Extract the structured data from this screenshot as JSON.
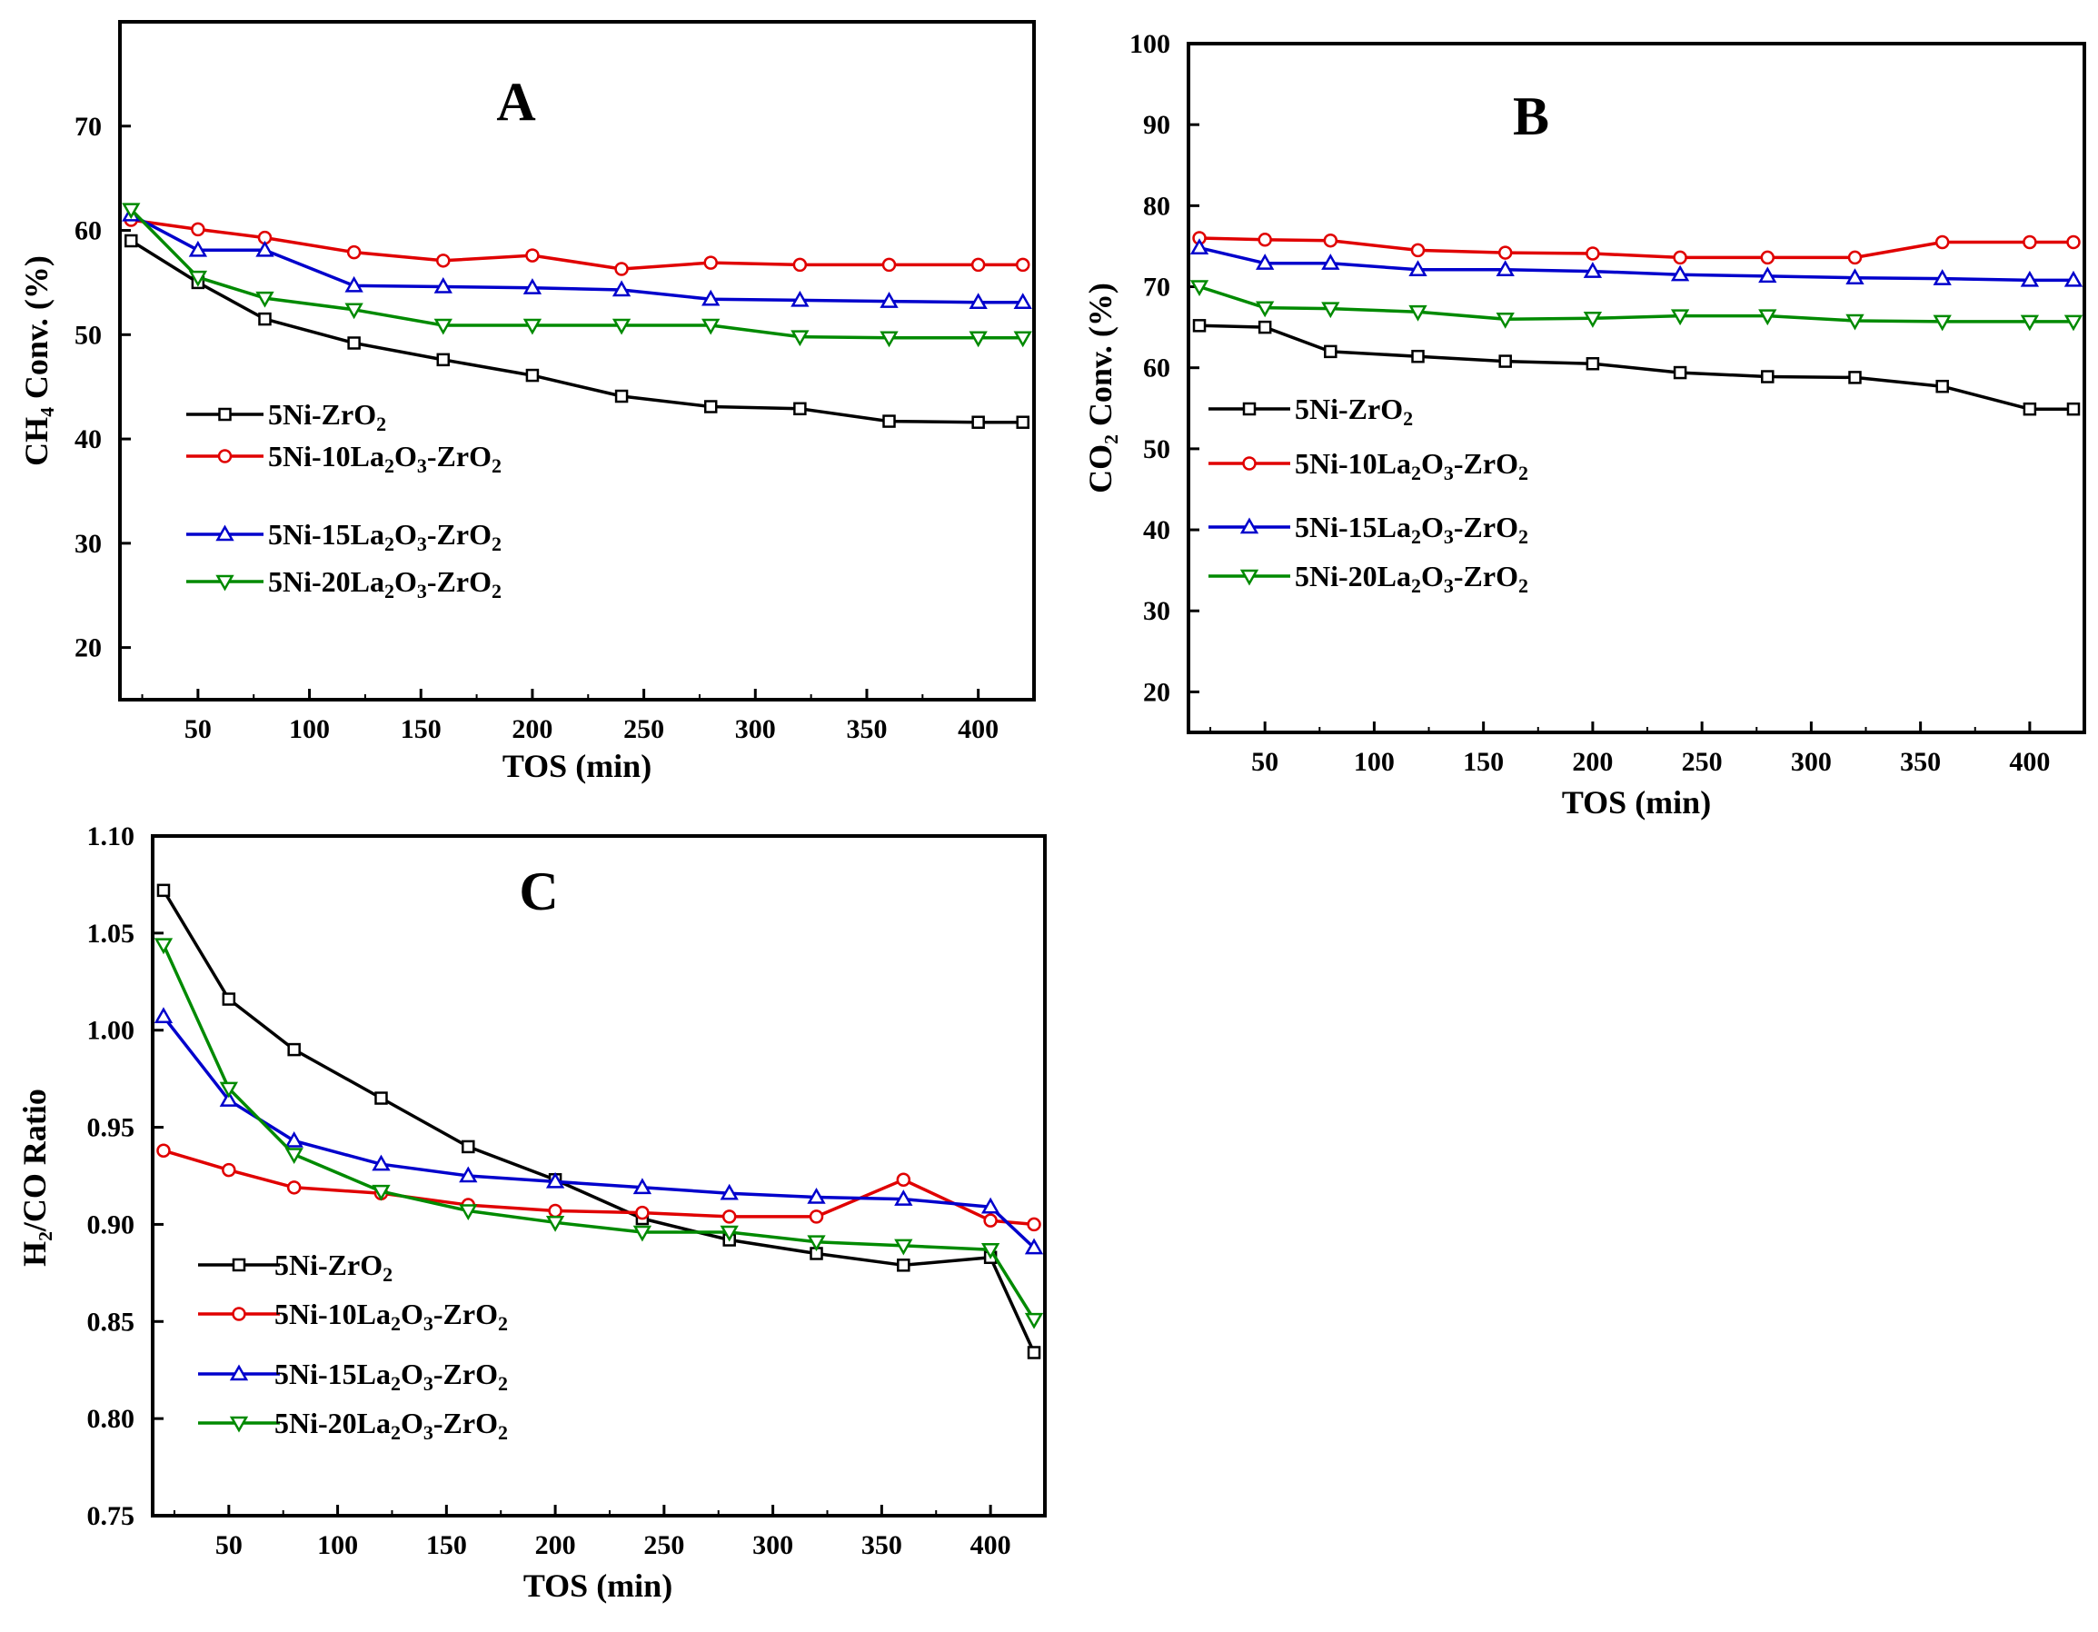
{
  "colors": {
    "5Ni-ZrO2": "#000000",
    "5Ni-10La2O3-ZrO2": "#e00000",
    "5Ni-15La2O3-ZrO2": "#0000cc",
    "5Ni-20La2O3-ZrO2": "#008a00"
  },
  "chart_data": [
    {
      "panel": "A",
      "type": "line",
      "title": "A",
      "xlabel": "TOS (min)",
      "ylabel": "CH₄ Conv. (%)",
      "xlim": [
        15,
        425
      ],
      "ylim": [
        15,
        80
      ],
      "xticks": [
        50,
        100,
        150,
        200,
        250,
        300,
        350,
        400
      ],
      "yticks": [
        20,
        30,
        40,
        50,
        60,
        70
      ],
      "legend_position": "center-left",
      "series": [
        {
          "key": "5Ni-ZrO2",
          "label_parts": [
            [
              "5Ni-ZrO",
              "n"
            ],
            [
              "2",
              "sub"
            ]
          ],
          "marker": "square",
          "x": [
            20,
            50,
            80,
            120,
            160,
            200,
            240,
            280,
            320,
            360,
            400,
            420
          ],
          "y": [
            59,
            55,
            51.5,
            49.2,
            47.6,
            46.1,
            44.1,
            43.1,
            42.9,
            41.7,
            41.6,
            41.6
          ]
        },
        {
          "key": "5Ni-10La2O3-ZrO2",
          "label_parts": [
            [
              "5Ni-10La",
              "n"
            ],
            [
              "2",
              "sub"
            ],
            [
              "O",
              "n"
            ],
            [
              "3",
              "sub"
            ],
            [
              "-ZrO",
              "n"
            ],
            [
              "2",
              "sub"
            ]
          ],
          "marker": "circle",
          "x": [
            20,
            50,
            80,
            120,
            160,
            200,
            240,
            280,
            320,
            360,
            400,
            420
          ],
          "y": [
            61,
            60.1,
            59.3,
            57.9,
            57.1,
            57.6,
            56.3,
            56.9,
            56.7,
            56.7,
            56.7,
            56.7
          ]
        },
        {
          "key": "5Ni-15La2O3-ZrO2",
          "label_parts": [
            [
              "5Ni-15La",
              "n"
            ],
            [
              "2",
              "sub"
            ],
            [
              "O",
              "n"
            ],
            [
              "3",
              "sub"
            ],
            [
              "-ZrO",
              "n"
            ],
            [
              "2",
              "sub"
            ]
          ],
          "marker": "triangle-up",
          "x": [
            20,
            50,
            80,
            120,
            160,
            200,
            240,
            280,
            320,
            360,
            400,
            420
          ],
          "y": [
            61.5,
            58.1,
            58.1,
            54.7,
            54.6,
            54.5,
            54.3,
            53.4,
            53.3,
            53.2,
            53.1,
            53.1
          ]
        },
        {
          "key": "5Ni-20La2O3-ZrO2",
          "label_parts": [
            [
              "5Ni-20La",
              "n"
            ],
            [
              "2",
              "sub"
            ],
            [
              "O",
              "n"
            ],
            [
              "3",
              "sub"
            ],
            [
              "-ZrO",
              "n"
            ],
            [
              "2",
              "sub"
            ]
          ],
          "marker": "triangle-down",
          "x": [
            20,
            50,
            80,
            120,
            160,
            200,
            240,
            280,
            320,
            360,
            400,
            420
          ],
          "y": [
            62,
            55.5,
            53.5,
            52.4,
            50.9,
            50.9,
            50.9,
            50.9,
            49.8,
            49.7,
            49.7,
            49.7
          ]
        }
      ]
    },
    {
      "panel": "B",
      "type": "line",
      "title": "B",
      "xlabel": "TOS (min)",
      "ylabel": "CO₂ Conv. (%)",
      "xlim": [
        15,
        425
      ],
      "ylim": [
        15,
        100
      ],
      "xticks": [
        50,
        100,
        150,
        200,
        250,
        300,
        350,
        400
      ],
      "yticks": [
        20,
        30,
        40,
        50,
        60,
        70,
        80,
        90,
        100
      ],
      "legend_position": "center-left",
      "series": [
        {
          "key": "5Ni-ZrO2",
          "label_parts": [
            [
              "5Ni-ZrO",
              "n"
            ],
            [
              "2",
              "sub"
            ]
          ],
          "marker": "square",
          "x": [
            20,
            50,
            80,
            120,
            160,
            200,
            240,
            280,
            320,
            360,
            400,
            420
          ],
          "y": [
            65.2,
            65,
            62,
            61.4,
            60.8,
            60.5,
            59.4,
            58.9,
            58.8,
            57.7,
            54.9,
            54.9
          ]
        },
        {
          "key": "5Ni-10La2O3-ZrO2",
          "label_parts": [
            [
              "5Ni-10La",
              "n"
            ],
            [
              "2",
              "sub"
            ],
            [
              "O",
              "n"
            ],
            [
              "3",
              "sub"
            ],
            [
              "-ZrO",
              "n"
            ],
            [
              "2",
              "sub"
            ]
          ],
          "marker": "circle",
          "x": [
            20,
            50,
            80,
            120,
            160,
            200,
            240,
            280,
            320,
            360,
            400,
            420
          ],
          "y": [
            76,
            75.8,
            75.7,
            74.5,
            74.2,
            74.1,
            73.6,
            73.6,
            73.6,
            75.5,
            75.5,
            75.5
          ]
        },
        {
          "key": "5Ni-15La2O3-ZrO2",
          "label_parts": [
            [
              "5Ni-15La",
              "n"
            ],
            [
              "2",
              "sub"
            ],
            [
              "O",
              "n"
            ],
            [
              "3",
              "sub"
            ],
            [
              "-ZrO",
              "n"
            ],
            [
              "2",
              "sub"
            ]
          ],
          "marker": "triangle-up",
          "x": [
            20,
            50,
            80,
            120,
            160,
            200,
            240,
            280,
            320,
            360,
            400,
            420
          ],
          "y": [
            74.8,
            72.9,
            72.9,
            72.1,
            72.1,
            71.9,
            71.5,
            71.3,
            71.1,
            71,
            70.8,
            70.8
          ]
        },
        {
          "key": "5Ni-20La2O3-ZrO2",
          "label_parts": [
            [
              "5Ni-20La",
              "n"
            ],
            [
              "2",
              "sub"
            ],
            [
              "O",
              "n"
            ],
            [
              "3",
              "sub"
            ],
            [
              "-ZrO",
              "n"
            ],
            [
              "2",
              "sub"
            ]
          ],
          "marker": "triangle-down",
          "x": [
            20,
            50,
            80,
            120,
            160,
            200,
            240,
            280,
            320,
            360,
            400,
            420
          ],
          "y": [
            70,
            67.4,
            67.3,
            66.9,
            66,
            66.1,
            66.4,
            66.4,
            65.8,
            65.7,
            65.7,
            65.7
          ]
        }
      ]
    },
    {
      "panel": "C",
      "type": "line",
      "title": "C",
      "xlabel": "TOS (min)",
      "ylabel": "H₂/CO Ratio",
      "xlim": [
        15,
        425
      ],
      "ylim": [
        0.75,
        1.1
      ],
      "xticks": [
        50,
        100,
        150,
        200,
        250,
        300,
        350,
        400
      ],
      "yticks": [
        0.75,
        0.8,
        0.85,
        0.9,
        0.95,
        1.0,
        1.05,
        1.1
      ],
      "ytick_decimals": 2,
      "legend_position": "bottom-left",
      "series": [
        {
          "key": "5Ni-ZrO2",
          "label_parts": [
            [
              "5Ni-ZrO",
              "n"
            ],
            [
              "2",
              "sub"
            ]
          ],
          "marker": "square",
          "x": [
            20,
            50,
            80,
            120,
            160,
            200,
            240,
            280,
            320,
            360,
            400,
            420
          ],
          "y": [
            1.072,
            1.016,
            0.99,
            0.965,
            0.94,
            0.923,
            0.903,
            0.892,
            0.885,
            0.879,
            0.883,
            0.834
          ]
        },
        {
          "key": "5Ni-10La2O3-ZrO2",
          "label_parts": [
            [
              "5Ni-10La",
              "n"
            ],
            [
              "2",
              "sub"
            ],
            [
              "O",
              "n"
            ],
            [
              "3",
              "sub"
            ],
            [
              "-ZrO",
              "n"
            ],
            [
              "2",
              "sub"
            ]
          ],
          "marker": "circle",
          "x": [
            20,
            50,
            80,
            120,
            160,
            200,
            240,
            280,
            320,
            360,
            400,
            420
          ],
          "y": [
            0.938,
            0.928,
            0.919,
            0.916,
            0.91,
            0.907,
            0.906,
            0.904,
            0.904,
            0.923,
            0.902,
            0.9
          ]
        },
        {
          "key": "5Ni-15La2O3-ZrO2",
          "label_parts": [
            [
              "5Ni-15La",
              "n"
            ],
            [
              "2",
              "sub"
            ],
            [
              "O",
              "n"
            ],
            [
              "3",
              "sub"
            ],
            [
              "-ZrO",
              "n"
            ],
            [
              "2",
              "sub"
            ]
          ],
          "marker": "triangle-up",
          "x": [
            20,
            50,
            80,
            120,
            160,
            200,
            240,
            280,
            320,
            360,
            400,
            420
          ],
          "y": [
            1.007,
            0.964,
            0.943,
            0.931,
            0.925,
            0.922,
            0.919,
            0.916,
            0.914,
            0.913,
            0.909,
            0.888
          ]
        },
        {
          "key": "5Ni-20La2O3-ZrO2",
          "label_parts": [
            [
              "5Ni-20La",
              "n"
            ],
            [
              "2",
              "sub"
            ],
            [
              "O",
              "n"
            ],
            [
              "3",
              "sub"
            ],
            [
              "-ZrO",
              "n"
            ],
            [
              "2",
              "sub"
            ]
          ],
          "marker": "triangle-down",
          "x": [
            20,
            50,
            80,
            120,
            160,
            200,
            240,
            280,
            320,
            360,
            400,
            420
          ],
          "y": [
            1.044,
            0.97,
            0.936,
            0.917,
            0.907,
            0.901,
            0.896,
            0.896,
            0.891,
            0.889,
            0.887,
            0.851
          ]
        }
      ]
    }
  ]
}
